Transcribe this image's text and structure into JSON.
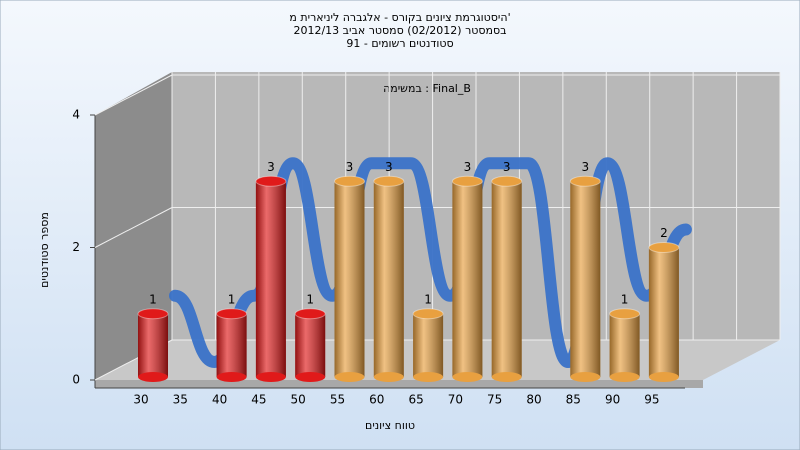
{
  "chart_data": {
    "type": "bar",
    "title": [
      "היסטוגרמת ציונים בקורס - אלגברה ליניארית מ'",
      "בסמסטר  (02/2012)  סמסטר אביב 2012/13",
      "סטודנטים רשומים - 91"
    ],
    "subtitle": "במשימה : Final_B",
    "x_label": "טווח ציונים",
    "y_label": "מספר סטודנטים",
    "categories": [
      "30",
      "35",
      "40",
      "45",
      "50",
      "55",
      "60",
      "65",
      "70",
      "75",
      "80",
      "85",
      "90",
      "95"
    ],
    "values": [
      1,
      0,
      1,
      3,
      1,
      3,
      3,
      1,
      3,
      3,
      0,
      3,
      1,
      2
    ],
    "value_labels": [
      "1",
      null,
      "1",
      "3",
      "1",
      "3",
      "3",
      "1",
      "3",
      "3",
      null,
      "3",
      "1",
      "2"
    ],
    "colors": [
      "#e01a1a",
      "#e01a1a",
      "#e01a1a",
      "#e01a1a",
      "#e01a1a",
      "#e8a040",
      "#e8a040",
      "#e8a040",
      "#e8a040",
      "#e8a040",
      "#e8a040",
      "#e8a040",
      "#e8a040",
      "#e8a040"
    ],
    "trend_color": "#3a72c8",
    "ylim": [
      0,
      4
    ],
    "yticks": [
      0,
      2,
      4
    ],
    "grid": true
  }
}
